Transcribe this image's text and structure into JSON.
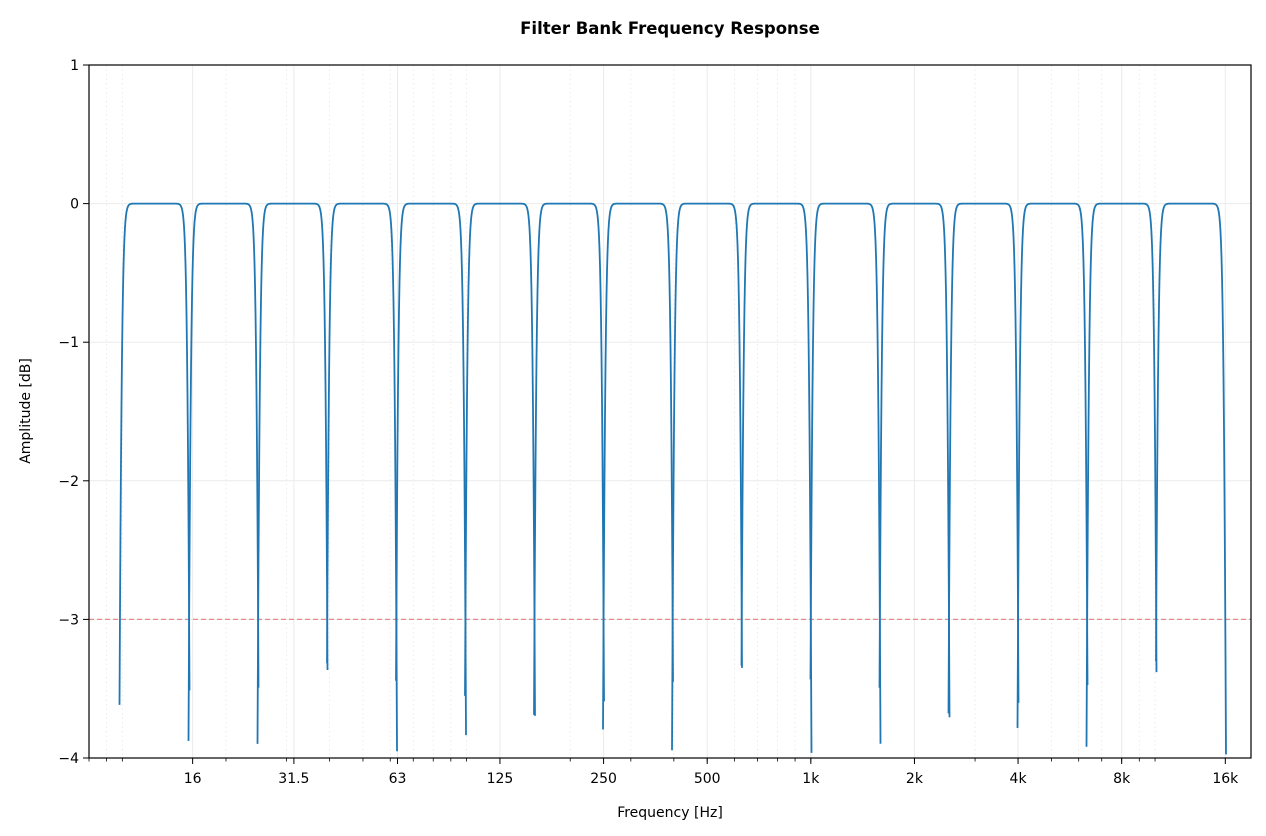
{
  "chart_data": {
    "type": "line",
    "title": "Filter Bank Frequency Response",
    "xlabel": "Frequency [Hz]",
    "ylabel": "Amplitude [dB]",
    "xscale": "log",
    "xlim": [
      8,
      19000
    ],
    "ylim": [
      -4,
      1
    ],
    "xticks": [
      {
        "value": 16,
        "label": "16"
      },
      {
        "value": 31.5,
        "label": "31.5"
      },
      {
        "value": 63,
        "label": "63"
      },
      {
        "value": 125,
        "label": "125"
      },
      {
        "value": 250,
        "label": "250"
      },
      {
        "value": 500,
        "label": "500"
      },
      {
        "value": 1000,
        "label": "1k"
      },
      {
        "value": 2000,
        "label": "2k"
      },
      {
        "value": 4000,
        "label": "4k"
      },
      {
        "value": 8000,
        "label": "8k"
      },
      {
        "value": 16000,
        "label": "16k"
      }
    ],
    "yticks": [
      {
        "value": 1,
        "label": "1"
      },
      {
        "value": 0,
        "label": "0"
      },
      {
        "value": -1,
        "label": "−1"
      },
      {
        "value": -2,
        "label": "−2"
      },
      {
        "value": -3,
        "label": "−3"
      },
      {
        "value": -4,
        "label": "−4"
      }
    ],
    "grid": true,
    "band_edges_hz": [
      9.84,
      15.63,
      24.8,
      39.37,
      62.5,
      99.21,
      157.5,
      250,
      396.9,
      630,
      1000,
      1587,
      2520,
      4000,
      6350,
      10079,
      16000
    ],
    "passband_level_db": 0,
    "reference_line": {
      "y": -3,
      "color": "#e88a8a",
      "style": "dashed"
    },
    "series_color": "#1f77b4"
  }
}
